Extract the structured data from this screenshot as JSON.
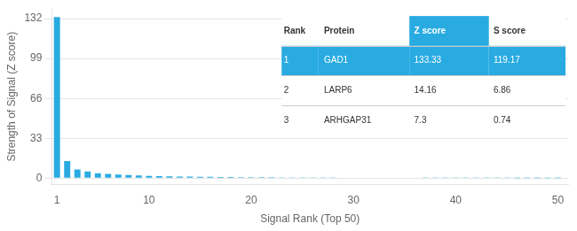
{
  "chart_data": {
    "type": "bar",
    "x": [
      1,
      2,
      3,
      4,
      5,
      6,
      7,
      8,
      9,
      10,
      11,
      12,
      13,
      14,
      15,
      16,
      17,
      18,
      19,
      20,
      21,
      22,
      23,
      24,
      25,
      26,
      27,
      28,
      29,
      30,
      31,
      32,
      33,
      34,
      35,
      36,
      37,
      38,
      39,
      40,
      41,
      42,
      43,
      44,
      45,
      46,
      47,
      48,
      49,
      50
    ],
    "values": [
      133.33,
      14.16,
      7.3,
      5.5,
      4.2,
      3.5,
      3.0,
      2.6,
      2.3,
      2.0,
      1.8,
      1.6,
      1.45,
      1.3,
      1.2,
      1.1,
      1.0,
      0.95,
      0.9,
      0.85,
      0.8,
      0.76,
      0.72,
      0.68,
      0.64,
      0.61,
      0.58,
      0.55,
      0.52,
      0.5,
      0.48,
      0.46,
      0.44,
      0.42,
      0.4,
      0.38,
      0.36,
      0.34,
      0.32,
      0.3,
      0.28,
      0.26,
      0.24,
      0.22,
      0.2,
      0.18,
      0.16,
      0.14,
      0.12,
      0.1
    ],
    "color": "#29ABE2",
    "xlabel": "Signal Rank (Top 50)",
    "ylabel": "Strength of Signal (Z score)",
    "xlim": [
      0.5,
      51
    ],
    "ylim": [
      -5,
      140
    ],
    "xticks": [
      1,
      10,
      20,
      30,
      40,
      50
    ],
    "yticks": [
      0,
      33,
      66,
      99,
      132
    ],
    "grid": true,
    "table": {
      "columns": [
        "Rank",
        "Protein",
        "Z score",
        "S score"
      ],
      "rows": [
        [
          "1",
          "GAD1",
          "133.33",
          "119.17"
        ],
        [
          "2",
          "LARP6",
          "14.16",
          "6.86"
        ],
        [
          "3",
          "ARHGAP31",
          "7.3",
          "0.74"
        ]
      ]
    }
  }
}
